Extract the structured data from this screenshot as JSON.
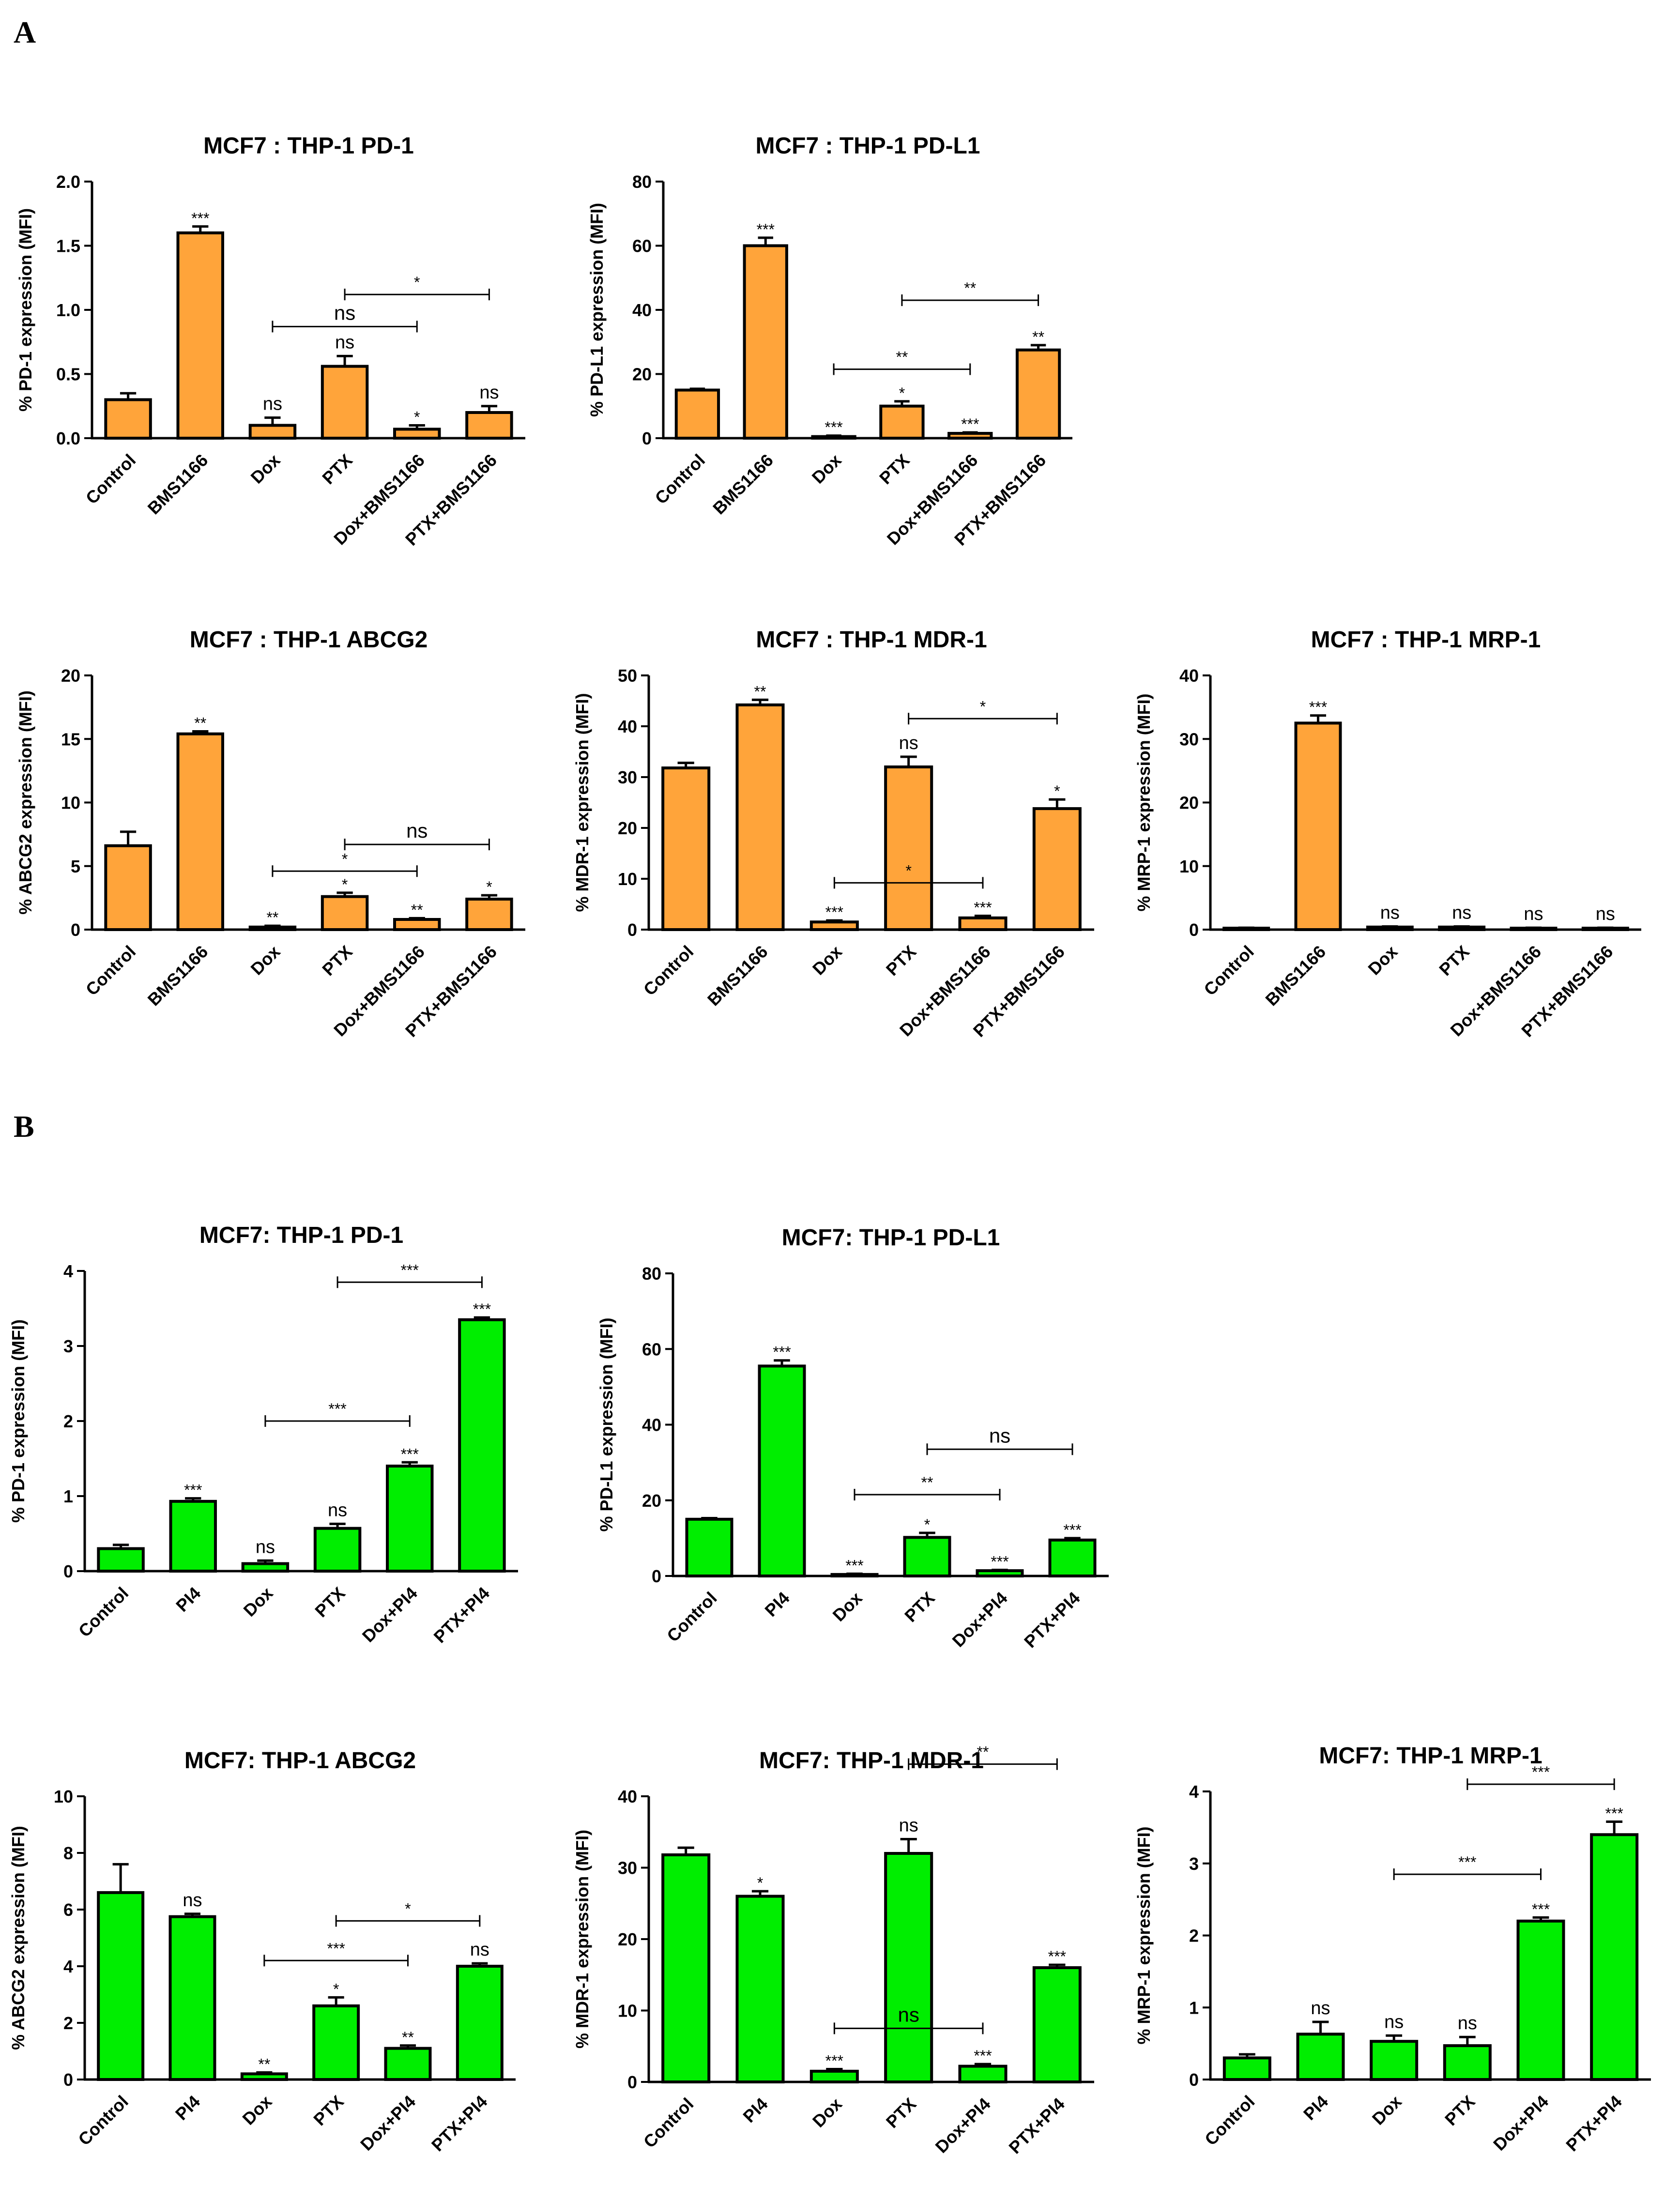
{
  "panels": [
    {
      "letter": "A"
    },
    {
      "letter": "B"
    }
  ],
  "chart_data": [
    {
      "type": "bar",
      "panel": "A",
      "color": "#FFA43A",
      "title": "MCF7 : THP-1 PD-1",
      "ylabel": "% PD-1 expression (MFI)",
      "ylim": [
        0,
        2.0
      ],
      "yticks": [
        "0.0",
        "0.5",
        "1.0",
        "1.5",
        "2.0"
      ],
      "categories": [
        "Control",
        "BMS1166",
        "Dox",
        "PTX",
        "Dox+BMS1166",
        "PTX+BMS1166"
      ],
      "values": [
        0.3,
        1.6,
        0.1,
        0.56,
        0.07,
        0.2
      ],
      "errors": [
        0.05,
        0.05,
        0.06,
        0.08,
        0.03,
        0.05
      ],
      "sig": [
        "",
        "***",
        "ns",
        "ns",
        "*",
        "ns"
      ],
      "brackets": [
        {
          "from": 2,
          "to": 4,
          "y": 0.87,
          "label": "ns"
        },
        {
          "from": 3,
          "to": 5,
          "y": 1.12,
          "label": "*"
        }
      ]
    },
    {
      "type": "bar",
      "panel": "A",
      "color": "#FFA43A",
      "title": "MCF7 : THP-1 PD-L1",
      "ylabel": "% PD-L1 expression (MFI)",
      "ylim": [
        0,
        80
      ],
      "yticks": [
        "0",
        "20",
        "40",
        "60",
        "80"
      ],
      "categories": [
        "Control",
        "BMS1166",
        "Dox",
        "PTX",
        "Dox+BMS1166",
        "PTX+BMS1166"
      ],
      "values": [
        15,
        60,
        0.5,
        10,
        1.5,
        27.5
      ],
      "errors": [
        0.4,
        2.5,
        0.3,
        1.5,
        0.3,
        1.5
      ],
      "sig": [
        "",
        "***",
        "***",
        "*",
        "***",
        "**"
      ],
      "brackets": [
        {
          "from": 2,
          "to": 4,
          "y": 21.5,
          "label": "**"
        },
        {
          "from": 3,
          "to": 5,
          "y": 43,
          "label": "**"
        }
      ]
    },
    {
      "type": "bar",
      "panel": "A",
      "color": "#FFA43A",
      "title": "MCF7 : THP-1 ABCG2",
      "ylabel": "% ABCG2 expression (MFI)",
      "ylim": [
        0,
        20
      ],
      "yticks": [
        "0",
        "5",
        "10",
        "15",
        "20"
      ],
      "categories": [
        "Control",
        "BMS1166",
        "Dox",
        "PTX",
        "Dox+BMS1166",
        "PTX+BMS1166"
      ],
      "values": [
        6.6,
        15.4,
        0.2,
        2.6,
        0.8,
        2.4
      ],
      "errors": [
        1.1,
        0.2,
        0.1,
        0.3,
        0.1,
        0.3
      ],
      "sig": [
        "",
        "**",
        "**",
        "*",
        "**",
        "*"
      ],
      "brackets": [
        {
          "from": 2,
          "to": 4,
          "y": 4.6,
          "label": "*"
        },
        {
          "from": 3,
          "to": 5,
          "y": 6.7,
          "label": "ns"
        }
      ]
    },
    {
      "type": "bar",
      "panel": "A",
      "color": "#FFA43A",
      "title": "MCF7 : THP-1 MDR-1",
      "ylabel": "% MDR-1 expression (MFI)",
      "ylim": [
        0,
        50
      ],
      "yticks": [
        "0",
        "10",
        "20",
        "30",
        "40",
        "50"
      ],
      "categories": [
        "Control",
        "BMS1166",
        "Dox",
        "PTX",
        "Dox+BMS1166",
        "PTX+BMS1166"
      ],
      "values": [
        31.8,
        44.2,
        1.5,
        32.0,
        2.3,
        23.8
      ],
      "errors": [
        1.0,
        1.0,
        0.3,
        2.0,
        0.4,
        1.8
      ],
      "sig": [
        "",
        "**",
        "***",
        "ns",
        "***",
        "*"
      ],
      "brackets": [
        {
          "from": 2,
          "to": 4,
          "y": 9.2,
          "label": "*"
        },
        {
          "from": 3,
          "to": 5,
          "y": 41.5,
          "label": "*"
        }
      ]
    },
    {
      "type": "bar",
      "panel": "A",
      "color": "#FFA43A",
      "title": "MCF7 : THP-1 MRP-1",
      "ylabel": "% MRP-1 expression (MFI)",
      "ylim": [
        0,
        40
      ],
      "yticks": [
        "0",
        "10",
        "20",
        "30",
        "40"
      ],
      "categories": [
        "Control",
        "BMS1166",
        "Dox",
        "PTX",
        "Dox+BMS1166",
        "PTX+BMS1166"
      ],
      "values": [
        0.2,
        32.5,
        0.4,
        0.4,
        0.2,
        0.2
      ],
      "errors": [
        0.1,
        1.2,
        0.1,
        0.1,
        0.1,
        0.1
      ],
      "sig": [
        "",
        "***",
        "ns",
        "ns",
        "ns",
        "ns"
      ],
      "brackets": []
    },
    {
      "type": "bar",
      "panel": "B",
      "color": "#00EE00",
      "title": "MCF7: THP-1 PD-1",
      "ylabel": "% PD-1 expression (MFI)",
      "ylim": [
        0,
        4
      ],
      "yticks": [
        "0",
        "1",
        "2",
        "3",
        "4"
      ],
      "categories": [
        "Control",
        "PI4",
        "Dox",
        "PTX",
        "Dox+PI4",
        "PTX+PI4"
      ],
      "values": [
        0.3,
        0.93,
        0.1,
        0.57,
        1.4,
        3.35
      ],
      "errors": [
        0.05,
        0.04,
        0.04,
        0.06,
        0.05,
        0.03
      ],
      "sig": [
        "",
        "***",
        "ns",
        "ns",
        "***",
        "***"
      ],
      "brackets": [
        {
          "from": 2,
          "to": 4,
          "y": 2.0,
          "label": "***"
        },
        {
          "from": 3,
          "to": 5,
          "y": 3.85,
          "label": "***"
        }
      ]
    },
    {
      "type": "bar",
      "panel": "B",
      "color": "#00EE00",
      "title": "MCF7: THP-1 PD-L1",
      "ylabel": "% PD-L1 expression (MFI)",
      "ylim": [
        0,
        80
      ],
      "yticks": [
        "0",
        "20",
        "40",
        "60",
        "80"
      ],
      "categories": [
        "Control",
        "PI4",
        "Dox",
        "PTX",
        "Dox+PI4",
        "PTX+PI4"
      ],
      "values": [
        15,
        55.5,
        0.4,
        10.2,
        1.4,
        9.5
      ],
      "errors": [
        0.3,
        1.5,
        0.2,
        1.2,
        0.2,
        0.5
      ],
      "sig": [
        "",
        "***",
        "***",
        "*",
        "***",
        "***"
      ],
      "brackets": [
        {
          "from": 2,
          "to": 4,
          "y": 21.5,
          "label": "**"
        },
        {
          "from": 3,
          "to": 5,
          "y": 33.5,
          "label": "ns"
        }
      ]
    },
    {
      "type": "bar",
      "panel": "B",
      "color": "#00EE00",
      "title": "MCF7: THP-1 ABCG2",
      "ylabel": "% ABCG2 expression (MFI)",
      "ylim": [
        0,
        10
      ],
      "yticks": [
        "0",
        "2",
        "4",
        "6",
        "8",
        "10"
      ],
      "categories": [
        "Control",
        "PI4",
        "Dox",
        "PTX",
        "Dox+PI4",
        "PTX+PI4"
      ],
      "values": [
        6.6,
        5.75,
        0.2,
        2.6,
        1.1,
        4.0
      ],
      "errors": [
        1.0,
        0.1,
        0.05,
        0.3,
        0.1,
        0.1
      ],
      "sig": [
        "",
        "ns",
        "**",
        "*",
        "**",
        "ns"
      ],
      "brackets": [
        {
          "from": 2,
          "to": 4,
          "y": 4.2,
          "label": "***"
        },
        {
          "from": 3,
          "to": 5,
          "y": 5.6,
          "label": "*"
        }
      ]
    },
    {
      "type": "bar",
      "panel": "B",
      "color": "#00EE00",
      "title": "MCF7: THP-1 MDR-1",
      "ylabel": "% MDR-1 expression (MFI)",
      "ylim": [
        0,
        40
      ],
      "yticks": [
        "0",
        "10",
        "20",
        "30",
        "40"
      ],
      "categories": [
        "Control",
        "PI4",
        "Dox",
        "PTX",
        "Dox+PI4",
        "PTX+PI4"
      ],
      "values": [
        31.8,
        26.0,
        1.5,
        32.0,
        2.2,
        16.0
      ],
      "errors": [
        1.0,
        0.7,
        0.3,
        2.0,
        0.3,
        0.4
      ],
      "sig": [
        "",
        "*",
        "***",
        "ns",
        "***",
        "***"
      ],
      "brackets": [
        {
          "from": 2,
          "to": 4,
          "y": 7.5,
          "label": "ns"
        },
        {
          "from": 3,
          "to": 5,
          "y": 44.5,
          "label": "**"
        }
      ]
    },
    {
      "type": "bar",
      "panel": "B",
      "color": "#00EE00",
      "title": "MCF7: THP-1 MRP-1",
      "ylabel": "% MRP-1 expression (MFI)",
      "ylim": [
        0,
        4
      ],
      "yticks": [
        "0",
        "1",
        "2",
        "3",
        "4"
      ],
      "categories": [
        "Control",
        "PI4",
        "Dox",
        "PTX",
        "Dox+PI4",
        "PTX+PI4"
      ],
      "values": [
        0.3,
        0.63,
        0.53,
        0.47,
        2.2,
        3.4
      ],
      "errors": [
        0.05,
        0.17,
        0.08,
        0.12,
        0.05,
        0.18
      ],
      "sig": [
        "",
        "ns",
        "ns",
        "ns",
        "***",
        "***"
      ],
      "brackets": [
        {
          "from": 2,
          "to": 4,
          "y": 2.85,
          "label": "***"
        },
        {
          "from": 3,
          "to": 5,
          "y": 4.1,
          "label": "***"
        }
      ]
    }
  ]
}
